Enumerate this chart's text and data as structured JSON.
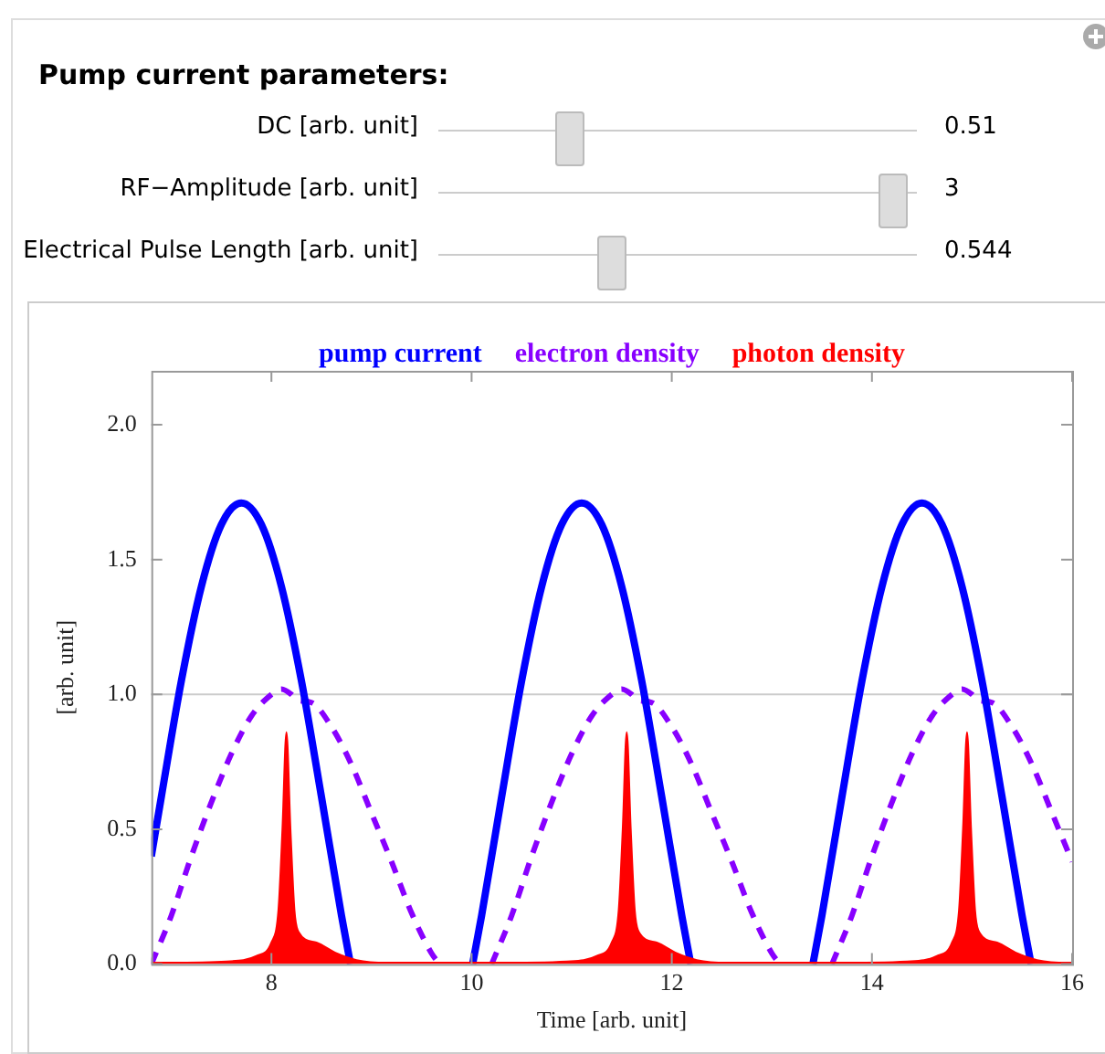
{
  "chart_data": {
    "type": "line",
    "xlabel": "Time [arb. unit]",
    "ylabel": "[arb. unit]",
    "xlim": [
      6.8,
      16
    ],
    "xticks": [
      8,
      10,
      12,
      14,
      16
    ],
    "ylim": [
      0,
      2.2
    ],
    "yticks": [
      {
        "value": 0,
        "label": "0.0"
      },
      {
        "value": 0.5,
        "label": "0.5"
      },
      {
        "value": 1,
        "label": "1.0"
      },
      {
        "value": 1.5,
        "label": "1.5"
      },
      {
        "value": 2,
        "label": "2.0"
      }
    ],
    "grid": false,
    "legend": "top",
    "marker": "none",
    "ref_lines": [
      {
        "axis": "y",
        "value": 1,
        "color": "#cccccc"
      }
    ],
    "annotations": [
      "Pump current parameters:",
      "DC [arb. unit]",
      "0.51",
      "RF−Amplitude [arb. unit]",
      "3",
      "Electrical Pulse Length [arb. unit]",
      "0.544"
    ],
    "series": [
      {
        "name": "pump current",
        "color": "#0000ff",
        "line_style": "solid",
        "x": [
          6.8,
          6.9,
          7.1,
          7.3,
          7.5,
          7.7,
          7.9,
          8.1,
          8.3,
          8.5,
          8.7,
          8.79,
          9.4,
          10.01,
          10.1,
          10.3,
          10.5,
          10.7,
          10.9,
          11.1,
          11.3,
          11.5,
          11.7,
          11.9,
          12.1,
          12.19,
          12.8,
          13.41,
          13.5,
          13.7,
          13.9,
          14.1,
          14.3,
          14.5,
          14.7,
          14.9,
          15.1,
          15.3,
          15.5,
          15.59
        ],
        "values": [
          0.4,
          0.62,
          1.05,
          1.4,
          1.63,
          1.71,
          1.63,
          1.4,
          1.05,
          0.62,
          0.18,
          0,
          null,
          0,
          0.18,
          0.62,
          1.05,
          1.4,
          1.63,
          1.71,
          1.63,
          1.4,
          1.05,
          0.62,
          0.18,
          0,
          null,
          0,
          0.18,
          0.62,
          1.05,
          1.4,
          1.63,
          1.71,
          1.63,
          1.4,
          1.05,
          0.62,
          0.18,
          0
        ]
      },
      {
        "name": "electron density",
        "color": "#8800ff",
        "line_style": "dashed",
        "x": [
          6.8,
          7.0,
          7.2,
          7.4,
          7.6,
          7.8,
          8.0,
          8.1,
          8.2,
          8.25,
          8.4,
          8.6,
          8.8,
          9.0,
          9.2,
          9.4,
          9.6,
          9.68,
          10.0,
          10.2,
          10.4,
          10.6,
          10.8,
          11.0,
          11.2,
          11.4,
          11.5,
          11.6,
          11.65,
          11.8,
          12.0,
          12.2,
          12.4,
          12.6,
          12.8,
          13.0,
          13.08,
          13.4,
          13.6,
          13.8,
          14.0,
          14.2,
          14.4,
          14.6,
          14.8,
          14.9,
          15.0,
          15.05,
          15.2,
          15.4,
          15.6,
          15.8,
          16.0
        ],
        "values": [
          0,
          0.18,
          0.4,
          0.6,
          0.78,
          0.92,
          1.0,
          1.02,
          1.0,
          0.98,
          0.97,
          0.88,
          0.74,
          0.56,
          0.38,
          0.19,
          0.04,
          0,
          null,
          0,
          0.18,
          0.4,
          0.6,
          0.78,
          0.92,
          1.0,
          1.02,
          1.0,
          0.98,
          0.97,
          0.88,
          0.74,
          0.56,
          0.38,
          0.19,
          0.04,
          0,
          null,
          0,
          0.18,
          0.4,
          0.6,
          0.78,
          0.92,
          1.0,
          1.02,
          1.0,
          0.98,
          0.97,
          0.88,
          0.74,
          0.56,
          0.38
        ]
      },
      {
        "name": "photon density",
        "type": "area",
        "color": "#ff0000",
        "line_style": "solid",
        "x": [
          6.8,
          7.55,
          7.85,
          8.0,
          8.07,
          8.11,
          8.15,
          8.19,
          8.23,
          8.27,
          8.45,
          8.65,
          8.85,
          9.15,
          10.2,
          10.95,
          11.25,
          11.4,
          11.47,
          11.51,
          11.55,
          11.59,
          11.63,
          11.67,
          11.85,
          12.05,
          12.25,
          12.55,
          13.6,
          14.35,
          14.65,
          14.8,
          14.87,
          14.91,
          14.95,
          14.99,
          15.03,
          15.07,
          15.25,
          15.45,
          15.65,
          15.95,
          16.0
        ],
        "values": [
          0.005,
          0.01,
          0.03,
          0.08,
          0.2,
          0.5,
          0.86,
          0.5,
          0.2,
          0.12,
          0.08,
          0.04,
          0.015,
          0.005,
          0.005,
          0.01,
          0.03,
          0.08,
          0.2,
          0.5,
          0.86,
          0.5,
          0.2,
          0.12,
          0.08,
          0.04,
          0.015,
          0.005,
          0.005,
          0.01,
          0.03,
          0.08,
          0.2,
          0.5,
          0.86,
          0.5,
          0.2,
          0.12,
          0.08,
          0.04,
          0.015,
          0.005,
          0.005
        ]
      }
    ]
  }
}
